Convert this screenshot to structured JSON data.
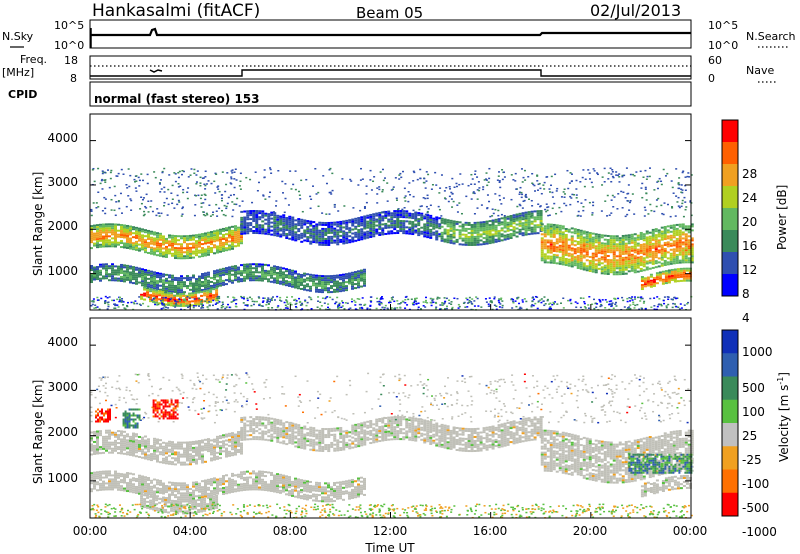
{
  "header": {
    "station": "Hankasalmi (fitACF)",
    "beam": "Beam 05",
    "date": "02/Jul/2013"
  },
  "noise_panel": {
    "left_label": "N.Sky",
    "right_label": "N.Search",
    "left_ticks": [
      "10^5",
      "10^0"
    ],
    "right_ticks": [
      "10^5",
      "10^0"
    ]
  },
  "freq_panel": {
    "left_label_line1": "Freq.",
    "left_label_line2": "[MHz]",
    "left_ticks": [
      "18",
      "8"
    ],
    "right_label": "Nave",
    "right_ticks": [
      "60",
      "0"
    ],
    "freq_values_mhz": [
      10.5,
      10.5,
      11.5,
      11.5,
      10.5
    ]
  },
  "cpid": {
    "label": "CPID",
    "text": "normal (fast stereo) 153"
  },
  "colors": {
    "power": [
      "#0000ff",
      "#2f4fb0",
      "#3a8a5a",
      "#62b860",
      "#b0d020",
      "#f0a020",
      "#ff6000",
      "#ff0000"
    ],
    "velocity": [
      "#1030b8",
      "#2f5fb0",
      "#3a8a5a",
      "#58c040",
      "#c0c0c0",
      "#f0a020",
      "#ff7000",
      "#ff0000"
    ],
    "ground_scatter": "#c0c0b8"
  },
  "power_panel": {
    "ylabel": "Slant Range [km]",
    "y_ticks": [
      "4000",
      "3000",
      "2000",
      "1000"
    ],
    "colorbar_title": "Power [dB]",
    "colorbar_ticks": [
      "28",
      "24",
      "20",
      "16",
      "12",
      "8",
      "4"
    ]
  },
  "velocity_panel": {
    "ylabel": "Slant Range [km]",
    "y_ticks": [
      "4000",
      "3000",
      "2000",
      "1000"
    ],
    "colorbar_title": "Velocity [m s",
    "colorbar_title_sup": "-1",
    "colorbar_title_end": "]",
    "colorbar_ticks": [
      "1000",
      "500",
      "100",
      "25",
      "-25",
      "-100",
      "-500",
      "-1000"
    ]
  },
  "x_axis": {
    "ticks": [
      "00:00",
      "04:00",
      "08:00",
      "12:00",
      "16:00",
      "20:00",
      "00:00"
    ],
    "label": "Time UT"
  },
  "chart_data": {
    "type": "heatmap",
    "x_range_hours": [
      0,
      24
    ],
    "y_range_km": [
      180,
      4600
    ],
    "mode_change_hour": 18.0,
    "power_bands": [
      {
        "t_start": 0,
        "t_end": 6,
        "range_km": [
          1500,
          2000
        ],
        "power_db": 24
      },
      {
        "t_start": 6,
        "t_end": 14,
        "range_km": [
          1800,
          2300
        ],
        "power_db": 8
      },
      {
        "t_start": 14,
        "t_end": 18,
        "range_km": [
          1800,
          2300
        ],
        "power_db": 16
      },
      {
        "t_start": 18,
        "t_end": 24,
        "range_km": [
          1100,
          2000
        ],
        "power_db": 24
      },
      {
        "t_start": 0,
        "t_end": 11,
        "range_km": [
          700,
          1100
        ],
        "power_db": 12
      },
      {
        "t_start": 2,
        "t_end": 5,
        "range_km": [
          400,
          700
        ],
        "power_db": 28
      },
      {
        "t_start": 22,
        "t_end": 24,
        "range_km": [
          700,
          1000
        ],
        "power_db": 28
      }
    ],
    "velocity_features": [
      {
        "t_start": 0.2,
        "t_end": 0.8,
        "range_km": [
          2300,
          2600
        ],
        "velocity": -500
      },
      {
        "t_start": 1.3,
        "t_end": 2.0,
        "range_km": [
          2200,
          2600
        ],
        "velocity": 100
      },
      {
        "t_start": 2.5,
        "t_end": 3.5,
        "range_km": [
          2400,
          2800
        ],
        "velocity": -500
      },
      {
        "t_start": 21.5,
        "t_end": 24,
        "range_km": [
          1200,
          1600
        ],
        "velocity": 100
      }
    ]
  }
}
